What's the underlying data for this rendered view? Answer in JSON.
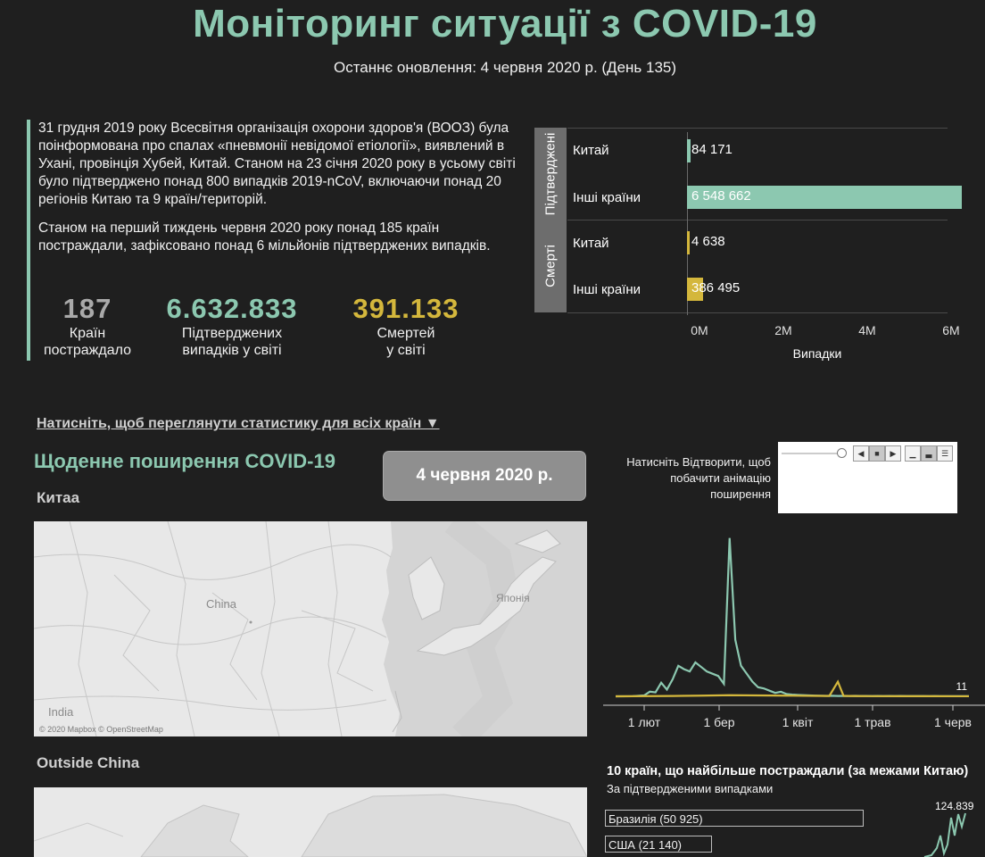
{
  "header": {
    "title": "Моніторинг ситуації з COVID-19",
    "subtitle": "Останнє оновлення: 4 червня 2020 р. (День 135)"
  },
  "intro": {
    "p1": "31 грудня 2019 року Всесвітня організація охорони здоров'я (ВООЗ) була поінформована про спалах «пневмонії невідомої етіології», виявлений в Ухані, провінція Хубей, Китай. Станом на 23 січня 2020 року в усьому світі було підтверджено понад 800 випадків 2019-nCoV, включаючи понад 20 регіонів Китаю та 9 країн/територій.",
    "p2": "Станом на перший тиждень червня 2020 року понад 185 країн постраждали, зафіксовано понад 6 мільйонів підтверджених випадків."
  },
  "stats": [
    {
      "value": "187",
      "label1": "Країн",
      "label2": "постраждало",
      "color": "#a9a9a9"
    },
    {
      "value": "6.632.833",
      "label1": "Підтверджених",
      "label2": "випадків у світі",
      "color": "#8cc8b0"
    },
    {
      "value": "391.133",
      "label1": "Смертей",
      "label2": "у світі",
      "color": "#d4b73c"
    }
  ],
  "chart_data": [
    {
      "type": "bar",
      "groups": [
        "Підтверджені",
        "Смерті"
      ],
      "categories": [
        "Китай",
        "Інші країни",
        "Китай",
        "Інші країни"
      ],
      "rows": [
        {
          "group": "Підтверджені",
          "category": "Китай",
          "value": 84171,
          "label": "84 171",
          "color": "#8cc8b0"
        },
        {
          "group": "Підтверджені",
          "category": "Інші країни",
          "value": 6548662,
          "label": "6 548 662",
          "color": "#8cc8b0"
        },
        {
          "group": "Смерті",
          "category": "Китай",
          "value": 4638,
          "label": "4 638",
          "color": "#d4b73c"
        },
        {
          "group": "Смерті",
          "category": "Інші країни",
          "value": 386495,
          "label": "386 495",
          "color": "#d4b73c"
        }
      ],
      "x_ticks": [
        "0M",
        "2M",
        "4M",
        "6M"
      ],
      "xlim": [
        0,
        6800000
      ],
      "xlabel": "Випадки"
    },
    {
      "type": "line",
      "x_ticks": [
        "1 лют",
        "1 бер",
        "1 квіт",
        "1 трав",
        "1 черв"
      ],
      "end_label": "11",
      "series": [
        {
          "color": "#8cc8b0",
          "x": [
            0,
            6,
            10,
            12,
            14,
            16,
            18,
            20,
            22,
            24,
            26,
            28,
            30,
            32,
            34,
            36,
            38,
            40,
            42,
            44,
            46,
            48,
            50,
            52,
            54,
            56,
            58,
            60,
            62,
            64,
            66,
            68,
            70,
            72,
            74,
            76,
            78,
            80,
            82,
            84,
            86,
            88,
            90,
            92,
            94,
            96,
            98,
            100,
            102,
            104,
            106,
            108,
            110,
            112,
            114,
            116,
            118,
            120,
            122,
            124
          ],
          "values": [
            0,
            10,
            80,
            410,
            350,
            1200,
            600,
            1500,
            2700,
            2400,
            2200,
            3000,
            2600,
            2200,
            2000,
            1800,
            1100,
            14000,
            5000,
            2700,
            2000,
            1300,
            800,
            700,
            500,
            300,
            400,
            200,
            150,
            120,
            100,
            80,
            60,
            50,
            40,
            50,
            30,
            40,
            30,
            40,
            30,
            30,
            20,
            30,
            20,
            30,
            20,
            30,
            20,
            20,
            20,
            20,
            15,
            20,
            15,
            15,
            10,
            10,
            10,
            11
          ]
        },
        {
          "color": "#d4b73c",
          "x": [
            0,
            20,
            30,
            40,
            50,
            60,
            70,
            75,
            78,
            80,
            82,
            85,
            90,
            100,
            110,
            120,
            124
          ],
          "values": [
            0,
            30,
            60,
            100,
            80,
            60,
            40,
            30,
            1290,
            40,
            30,
            20,
            15,
            10,
            8,
            5,
            3
          ]
        }
      ],
      "ylim": [
        0,
        15000
      ]
    },
    {
      "type": "bar",
      "title": "10 країн, що найбільше постраждали (за межами Китаю)",
      "subtitle": "За підтвердженими випадками",
      "categories": [
        "Бразилія (50 925)",
        "США (21 140)"
      ],
      "values": [
        50925,
        21140
      ],
      "sparkline_label": "124.839"
    }
  ],
  "ui": {
    "all_countries_link": "Натисніть, щоб переглянути статистику для всіх країн ▼",
    "daily_title": "Щоденне поширення COVID-19",
    "date_button": "4 червня 2020 р.",
    "play_hint": "Натисніть Відтворити, щоб побачити анімацію поширення",
    "china_label": "Китаа",
    "outside_label": "Outside China",
    "map_attribution": "© 2020 Mapbox © OpenStreetMap",
    "map_labels": {
      "china": "China",
      "japan": "Японія",
      "india": "India"
    }
  }
}
